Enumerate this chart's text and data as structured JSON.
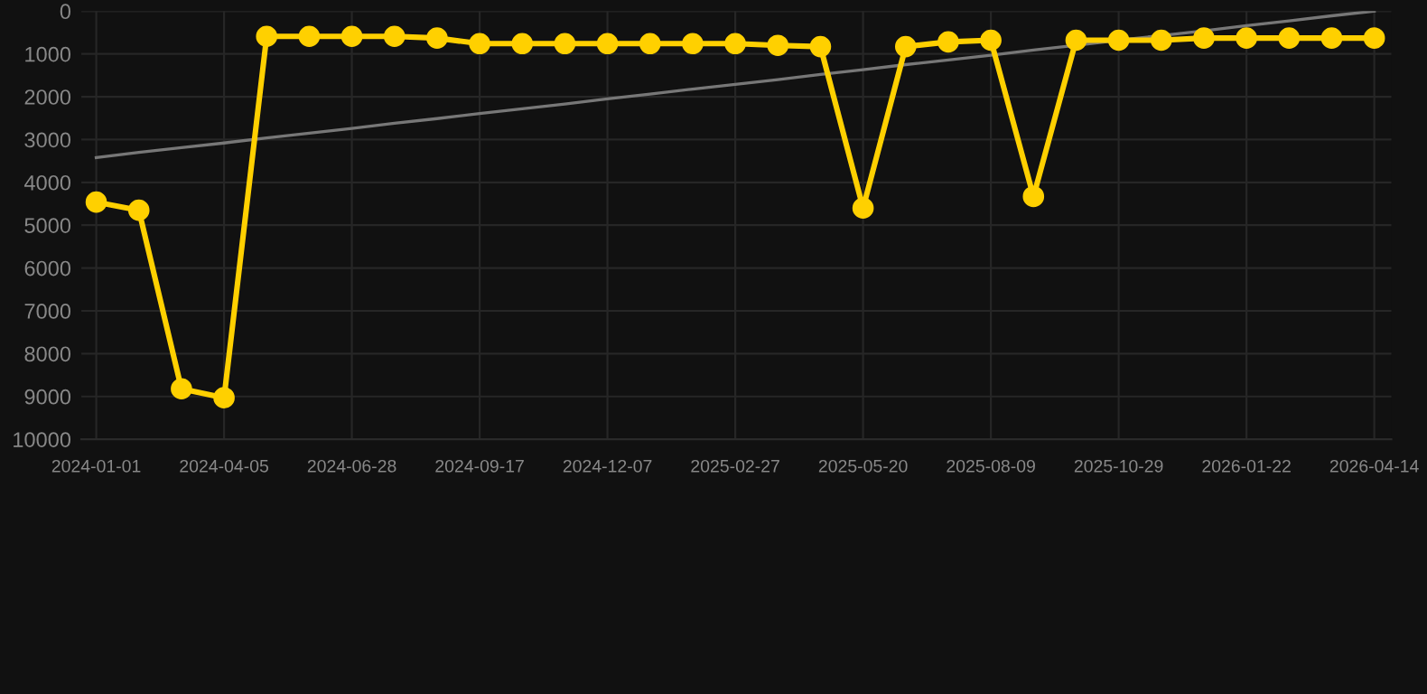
{
  "chart_data": {
    "type": "line",
    "categories": [
      "2024-01-01",
      null,
      null,
      "2024-04-05",
      null,
      null,
      "2024-06-28",
      null,
      null,
      "2024-09-17",
      null,
      null,
      "2024-12-07",
      null,
      null,
      "2025-02-27",
      null,
      null,
      "2025-05-20",
      null,
      null,
      "2025-08-09",
      null,
      null,
      "2025-10-29",
      null,
      null,
      "2026-01-22",
      null,
      null,
      "2026-04-14"
    ],
    "series": [
      {
        "color": "#ffd000",
        "marker": "circle",
        "values": [
          4460,
          4650,
          8820,
          9030,
          590,
          590,
          590,
          590,
          630,
          760,
          760,
          760,
          760,
          760,
          760,
          760,
          800,
          830,
          4600,
          830,
          720,
          680,
          4330,
          680,
          680,
          680,
          630,
          630,
          630,
          630,
          630
        ]
      },
      {
        "type": "line",
        "color": "#777777",
        "marker": "none",
        "values": [
          3420,
          3300,
          3190,
          3080,
          2960,
          2850,
          2740,
          2620,
          2510,
          2390,
          2280,
          2170,
          2050,
          1940,
          1820,
          1710,
          1600,
          1480,
          1370,
          1250,
          1140,
          1030,
          910,
          800,
          680,
          570,
          460,
          340,
          230,
          110,
          0
        ]
      }
    ],
    "ylim": [
      10000,
      0
    ],
    "yticks": [
      0,
      1000,
      2000,
      3000,
      4000,
      5000,
      6000,
      7000,
      8000,
      9000,
      10000
    ],
    "grid": true,
    "line_style": "solid"
  }
}
